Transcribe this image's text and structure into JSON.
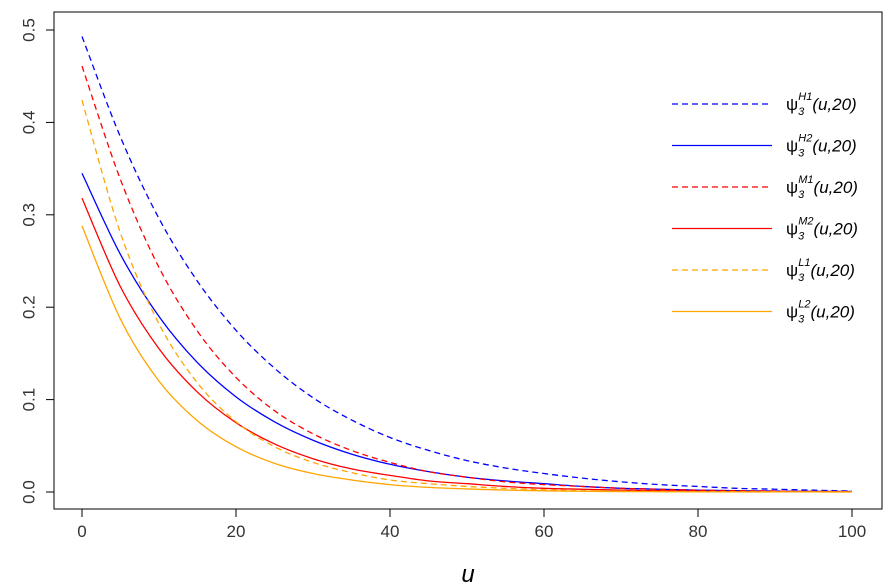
{
  "chart_data": {
    "type": "line",
    "xlabel": "u",
    "ylabel": "",
    "xlim": [
      0,
      100
    ],
    "ylim": [
      0,
      0.5
    ],
    "x_ticks": [
      "0",
      "20",
      "40",
      "60",
      "80",
      "100"
    ],
    "y_ticks": [
      "0.0",
      "0.1",
      "0.2",
      "0.3",
      "0.4",
      "0.5"
    ],
    "grid": false,
    "legend_position": "top-right",
    "x": [
      0,
      5,
      10,
      15,
      20,
      25,
      30,
      35,
      40,
      45,
      50,
      55,
      60,
      65,
      70,
      75,
      80,
      85,
      90,
      95,
      100
    ],
    "series": [
      {
        "name": "ψ3H1(u,20)",
        "legend": {
          "sym": "ψ",
          "sub": "3",
          "sup": "H1",
          "arg": "(u,20)"
        },
        "color": "#0000ff",
        "dash": "dashed",
        "values": [
          0.493,
          0.384,
          0.296,
          0.228,
          0.175,
          0.134,
          0.102,
          0.078,
          0.059,
          0.045,
          0.034,
          0.026,
          0.02,
          0.015,
          0.011,
          0.008,
          0.006,
          0.004,
          0.003,
          0.002,
          0.001
        ]
      },
      {
        "name": "ψ3H2(u,20)",
        "legend": {
          "sym": "ψ",
          "sub": "3",
          "sup": "H2",
          "arg": "(u,20)"
        },
        "color": "#0000ff",
        "dash": "solid",
        "values": [
          0.345,
          0.257,
          0.19,
          0.14,
          0.103,
          0.076,
          0.056,
          0.041,
          0.03,
          0.022,
          0.016,
          0.012,
          0.009,
          0.006,
          0.004,
          0.003,
          0.002,
          0.0015,
          0.001,
          0.0007,
          0.0005
        ]
      },
      {
        "name": "ψ3M1(u,20)",
        "legend": {
          "sym": "ψ",
          "sub": "3",
          "sup": "M1",
          "arg": "(u,20)"
        },
        "color": "#ff0000",
        "dash": "dashed",
        "values": [
          0.461,
          0.338,
          0.243,
          0.174,
          0.124,
          0.088,
          0.063,
          0.045,
          0.032,
          0.022,
          0.016,
          0.011,
          0.008,
          0.006,
          0.004,
          0.003,
          0.002,
          0.0014,
          0.001,
          0.0007,
          0.0005
        ]
      },
      {
        "name": "ψ3M2(u,20)",
        "legend": {
          "sym": "ψ",
          "sub": "3",
          "sup": "M2",
          "arg": "(u,20)"
        },
        "color": "#ff0000",
        "dash": "solid",
        "values": [
          0.318,
          0.222,
          0.155,
          0.108,
          0.075,
          0.052,
          0.036,
          0.025,
          0.018,
          0.012,
          0.009,
          0.006,
          0.004,
          0.003,
          0.002,
          0.0014,
          0.001,
          0.0007,
          0.0005,
          0.0003,
          0.0002
        ]
      },
      {
        "name": "ψ3L1(u,20)",
        "legend": {
          "sym": "ψ",
          "sub": "3",
          "sup": "L1",
          "arg": "(u,20)"
        },
        "color": "#ffa500",
        "dash": "dashed",
        "values": [
          0.424,
          0.28,
          0.182,
          0.118,
          0.076,
          0.049,
          0.032,
          0.021,
          0.013,
          0.009,
          0.006,
          0.004,
          0.0024,
          0.0015,
          0.001,
          0.0006,
          0.0004,
          0.0003,
          0.0002,
          0.0001,
          0.0001
        ]
      },
      {
        "name": "ψ3L2(u,20)",
        "legend": {
          "sym": "ψ",
          "sub": "3",
          "sup": "L2",
          "arg": "(u,20)"
        },
        "color": "#ffa500",
        "dash": "solid",
        "values": [
          0.288,
          0.187,
          0.12,
          0.077,
          0.049,
          0.031,
          0.02,
          0.013,
          0.008,
          0.005,
          0.0033,
          0.0021,
          0.0013,
          0.0008,
          0.0005,
          0.0003,
          0.0002,
          0.0001,
          0.0001,
          0.0001,
          0.0
        ]
      }
    ]
  }
}
